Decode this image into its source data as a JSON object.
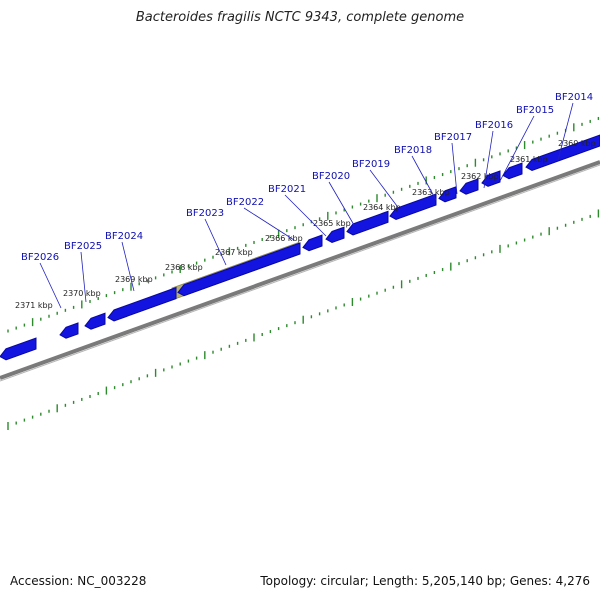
{
  "title": "Bacteroides fragilis NCTC 9343, complete genome",
  "footer": {
    "accession": "Accession: NC_003228",
    "info": "Topology: circular; Length: 5,205,140 bp; Genes: 4,276"
  },
  "colors": {
    "gene": "#1414e0",
    "gene_shadow": "#0808a0",
    "backbone": "#7a7a7a",
    "tick": "#2d8a2d",
    "highlight": "#b8b070",
    "label": "#1010b0",
    "leader": "#2020c0"
  },
  "scale_labels": [
    "2371 kbp",
    "2370 kbp",
    "2369 kbp",
    "2368 kbp",
    "2367 kbp",
    "2366 kbp",
    "2365 kbp",
    "2364 kbp",
    "2363 kbp",
    "2362 kbp",
    "2361 kbp",
    "2360 kbp"
  ],
  "gene_labels": [
    "BF2026",
    "BF2025",
    "BF2024",
    "BF2023",
    "BF2022",
    "BF2021",
    "BF2020",
    "BF2019",
    "BF2018",
    "BF2017",
    "BF2016",
    "BF2015",
    "BF2014"
  ]
}
